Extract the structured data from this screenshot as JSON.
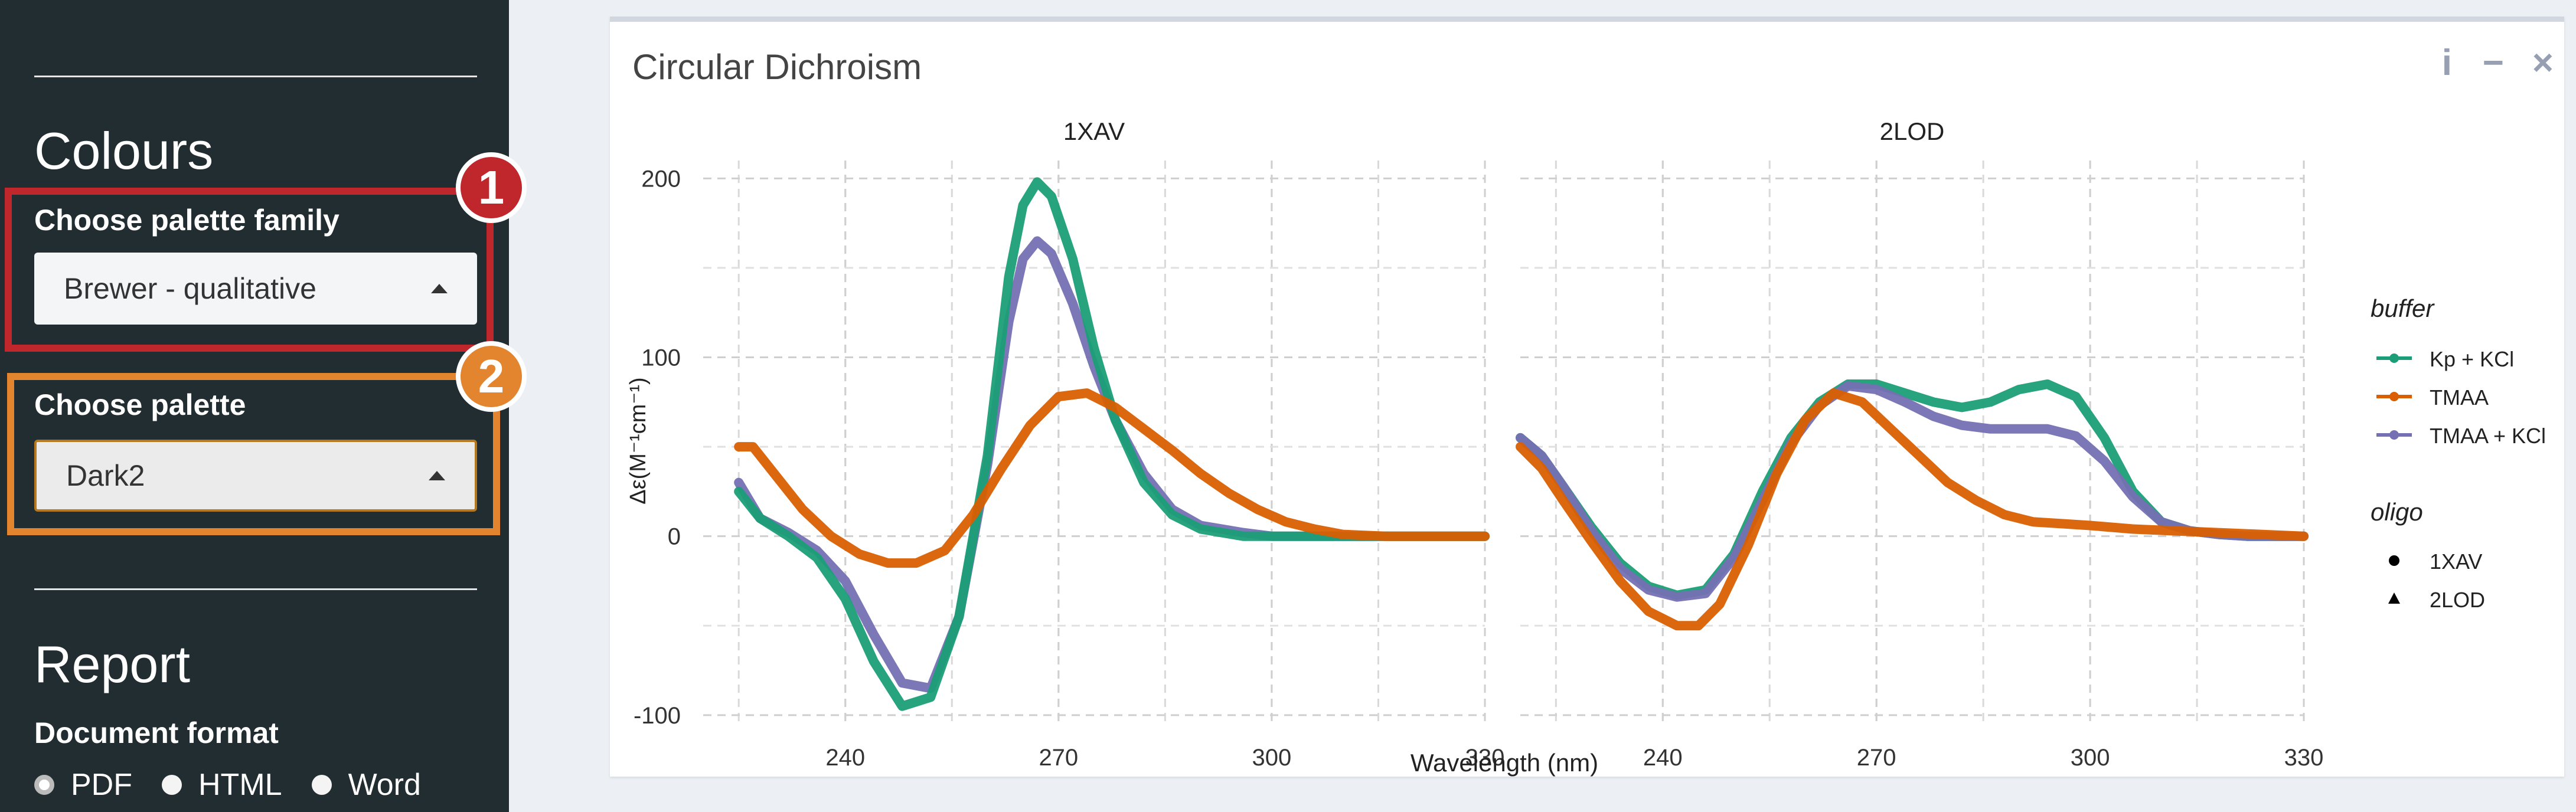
{
  "sidebar": {
    "colours_title": "Colours",
    "palette_family_label": "Choose palette family",
    "palette_family_value": "Brewer - qualitative",
    "palette_label": "Choose palette",
    "palette_value": "Dark2",
    "report_title": "Report",
    "doc_format_label": "Document format",
    "formats": [
      {
        "label": "PDF",
        "selected": true
      },
      {
        "label": "HTML",
        "selected": false
      },
      {
        "label": "Word",
        "selected": false
      }
    ],
    "annotations": [
      {
        "number": "1",
        "color": "#c0272d"
      },
      {
        "number": "2",
        "color": "#e3852f"
      }
    ]
  },
  "panel": {
    "title": "Circular Dichroism",
    "tools": {
      "info": "i",
      "minimize": "−",
      "close": "×"
    }
  },
  "chart_data": {
    "type": "line",
    "xlabel": "Wavelength (nm)",
    "ylabel": "Δε(M⁻¹cm⁻¹)",
    "ylim": [
      -105,
      210
    ],
    "yticks": [
      -100,
      0,
      100,
      200
    ],
    "facets": [
      {
        "title": "1XAV",
        "xlim": [
          220,
          330
        ],
        "xticks": [
          240,
          270,
          300,
          330
        ]
      },
      {
        "title": "2LOD",
        "xlim": [
          220,
          330
        ],
        "xticks": [
          240,
          270,
          300,
          330
        ]
      }
    ],
    "legend": {
      "buffer_title": "buffer",
      "buffer": [
        {
          "name": "Kp + KCl",
          "color": "#1b9e77"
        },
        {
          "name": "TMAA",
          "color": "#d95f02"
        },
        {
          "name": "TMAA + KCl",
          "color": "#7570b3"
        }
      ],
      "oligo_title": "oligo",
      "oligo": [
        {
          "name": "1XAV",
          "shape": "circle"
        },
        {
          "name": "2LOD",
          "shape": "triangle"
        }
      ]
    },
    "series": [
      {
        "facet": 0,
        "buffer": "TMAA + KCl",
        "color": "#7570b3",
        "x": [
          225,
          228,
          232,
          236,
          240,
          244,
          248,
          252,
          256,
          260,
          263,
          265,
          267,
          269,
          272,
          275,
          278,
          282,
          286,
          290,
          296,
          300,
          310,
          320,
          330
        ],
        "y": [
          30,
          10,
          2,
          -8,
          -25,
          -55,
          -82,
          -85,
          -45,
          40,
          120,
          155,
          165,
          158,
          130,
          95,
          65,
          35,
          15,
          6,
          2,
          0,
          0,
          0,
          0
        ]
      },
      {
        "facet": 0,
        "buffer": "Kp + KCl",
        "color": "#1b9e77",
        "x": [
          225,
          228,
          232,
          236,
          240,
          244,
          248,
          252,
          256,
          260,
          263,
          265,
          267,
          269,
          272,
          275,
          278,
          282,
          286,
          290,
          296,
          300,
          310,
          320,
          330
        ],
        "y": [
          25,
          10,
          0,
          -12,
          -35,
          -70,
          -95,
          -90,
          -45,
          45,
          145,
          185,
          198,
          190,
          155,
          105,
          65,
          30,
          12,
          4,
          0,
          0,
          0,
          0,
          0
        ]
      },
      {
        "facet": 0,
        "buffer": "TMAA",
        "color": "#d95f02",
        "x": [
          225,
          227,
          230,
          234,
          238,
          242,
          246,
          250,
          254,
          258,
          262,
          266,
          270,
          274,
          278,
          282,
          286,
          290,
          294,
          298,
          302,
          306,
          310,
          316,
          322,
          330
        ],
        "y": [
          50,
          50,
          35,
          15,
          0,
          -10,
          -15,
          -15,
          -8,
          12,
          38,
          62,
          78,
          80,
          72,
          60,
          48,
          35,
          24,
          15,
          8,
          4,
          1,
          0,
          0,
          0
        ]
      },
      {
        "facet": 1,
        "buffer": "Kp + KCl",
        "color": "#1b9e77",
        "x": [
          220,
          223,
          226,
          230,
          234,
          238,
          242,
          246,
          250,
          254,
          258,
          262,
          266,
          270,
          274,
          278,
          282,
          286,
          290,
          294,
          298,
          302,
          306,
          310,
          314,
          318,
          322,
          326,
          330
        ],
        "y": [
          55,
          45,
          28,
          5,
          -15,
          -28,
          -33,
          -30,
          -10,
          25,
          55,
          75,
          85,
          85,
          80,
          75,
          72,
          75,
          82,
          85,
          78,
          55,
          25,
          8,
          3,
          1,
          0,
          0,
          0
        ]
      },
      {
        "facet": 1,
        "buffer": "TMAA + KCl",
        "color": "#7570b3",
        "x": [
          220,
          223,
          226,
          230,
          234,
          238,
          242,
          246,
          250,
          254,
          258,
          262,
          266,
          270,
          274,
          278,
          282,
          286,
          290,
          294,
          298,
          302,
          306,
          310,
          314,
          318,
          322,
          326,
          330
        ],
        "y": [
          55,
          45,
          28,
          3,
          -18,
          -30,
          -34,
          -32,
          -12,
          20,
          52,
          73,
          84,
          82,
          75,
          67,
          62,
          60,
          60,
          60,
          56,
          42,
          22,
          8,
          3,
          1,
          0,
          0,
          0
        ]
      },
      {
        "facet": 1,
        "buffer": "TMAA",
        "color": "#d95f02",
        "x": [
          220,
          223,
          226,
          230,
          234,
          238,
          242,
          245,
          248,
          252,
          256,
          260,
          264,
          268,
          272,
          276,
          280,
          284,
          288,
          292,
          296,
          300,
          306,
          312,
          318,
          324,
          330
        ],
        "y": [
          50,
          38,
          20,
          -3,
          -25,
          -42,
          -50,
          -50,
          -38,
          -5,
          35,
          65,
          80,
          75,
          60,
          45,
          30,
          20,
          12,
          8,
          7,
          6,
          4,
          3,
          2,
          1,
          0
        ]
      }
    ]
  }
}
